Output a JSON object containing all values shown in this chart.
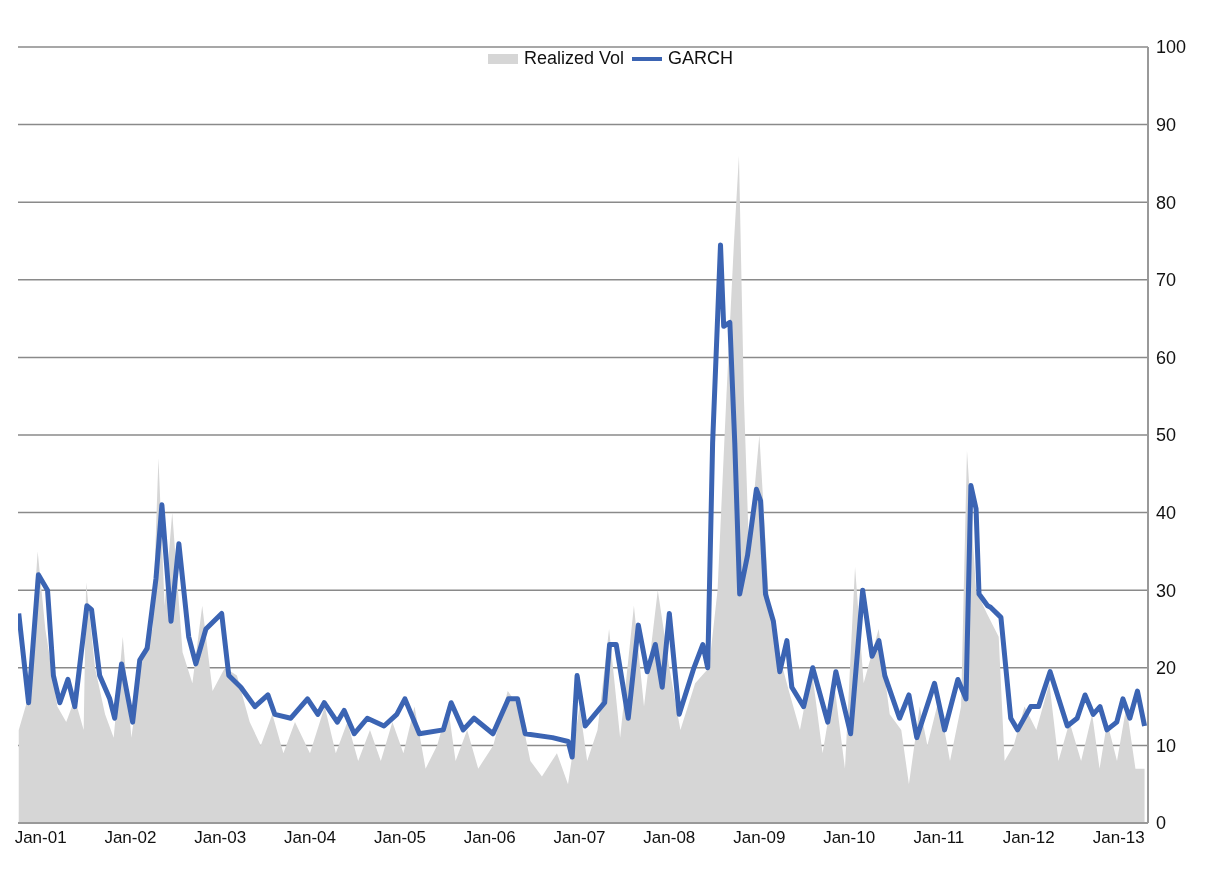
{
  "chart_data": {
    "type": "line",
    "legend": "top",
    "grid": "y",
    "marker": "none",
    "line_style": "solid",
    "xlim": [
      "2000-10-01",
      "2013-04-30"
    ],
    "xticks": [
      {
        "value": "2001-01-01",
        "label": "Jan-01"
      },
      {
        "value": "2002-01-01",
        "label": "Jan-02"
      },
      {
        "value": "2003-01-01",
        "label": "Jan-03"
      },
      {
        "value": "2004-01-01",
        "label": "Jan-04"
      },
      {
        "value": "2005-01-01",
        "label": "Jan-05"
      },
      {
        "value": "2006-01-01",
        "label": "Jan-06"
      },
      {
        "value": "2007-01-01",
        "label": "Jan-07"
      },
      {
        "value": "2008-01-01",
        "label": "Jan-08"
      },
      {
        "value": "2009-01-01",
        "label": "Jan-09"
      },
      {
        "value": "2010-01-01",
        "label": "Jan-10"
      },
      {
        "value": "2011-01-01",
        "label": "Jan-11"
      },
      {
        "value": "2012-01-01",
        "label": "Jan-12"
      },
      {
        "value": "2013-01-01",
        "label": "Jan-13"
      }
    ],
    "ylim": [
      0,
      100
    ],
    "yticks": [
      0,
      10,
      20,
      30,
      40,
      50,
      60,
      70,
      80,
      90,
      100
    ],
    "series": [
      {
        "name": "Realized Vol",
        "type": "area",
        "color": "#d6d6d6",
        "x": [
          "2000-10-04",
          "2000-11-10",
          "2000-12-20",
          "2001-01-20",
          "2001-03-10",
          "2001-04-15",
          "2001-05-20",
          "2001-06-25",
          "2001-07-05",
          "2001-08-10",
          "2001-09-20",
          "2001-10-25",
          "2001-12-01",
          "2002-01-05",
          "2002-02-20",
          "2002-04-01",
          "2002-04-25",
          "2002-05-20",
          "2002-06-20",
          "2002-08-01",
          "2002-09-10",
          "2002-10-20",
          "2002-12-01",
          "2003-01-20",
          "2003-03-10",
          "2003-05-01",
          "2003-06-15",
          "2003-08-01",
          "2003-09-15",
          "2003-11-01",
          "2004-01-01",
          "2004-03-01",
          "2004-04-15",
          "2004-06-01",
          "2004-07-15",
          "2004-09-01",
          "2004-10-15",
          "2004-12-01",
          "2005-01-15",
          "2005-03-01",
          "2005-04-15",
          "2005-06-01",
          "2005-07-15",
          "2005-08-15",
          "2005-10-01",
          "2005-11-15",
          "2006-01-15",
          "2006-03-15",
          "2006-05-01",
          "2006-06-15",
          "2006-08-01",
          "2006-10-01",
          "2006-11-15",
          "2007-01-01",
          "2007-02-01",
          "2007-03-15",
          "2007-05-01",
          "2007-06-15",
          "2007-08-10",
          "2007-09-20",
          "2007-11-15",
          "2008-01-01",
          "2008-02-15",
          "2008-04-15",
          "2008-06-10",
          "2008-07-15",
          "2008-08-20",
          "2008-09-20",
          "2008-10-10",
          "2008-10-30",
          "2008-11-20",
          "2009-01-01",
          "2009-02-10",
          "2009-03-20",
          "2009-05-01",
          "2009-06-15",
          "2009-08-01",
          "2009-09-15",
          "2009-11-01",
          "2009-12-15",
          "2010-01-25",
          "2010-03-01",
          "2010-05-01",
          "2010-06-15",
          "2010-08-01",
          "2010-09-01",
          "2010-10-15",
          "2010-11-15",
          "2011-01-01",
          "2011-02-15",
          "2011-04-01",
          "2011-04-25",
          "2011-06-01",
          "2011-07-15",
          "2011-09-01",
          "2011-09-25",
          "2011-11-01",
          "2011-12-15",
          "2012-02-01",
          "2012-03-25",
          "2012-05-01",
          "2012-06-15",
          "2012-08-01",
          "2012-09-15",
          "2012-10-15",
          "2012-11-15",
          "2012-12-25",
          "2013-02-01",
          "2013-03-10",
          "2013-04-16"
        ],
        "values": [
          12,
          16,
          35,
          25,
          15,
          13,
          16,
          12,
          31,
          20,
          14,
          11,
          24,
          11,
          22,
          25,
          47,
          28,
          40,
          22,
          18,
          28,
          17,
          20,
          19,
          13,
          10,
          14,
          9,
          13,
          9,
          15,
          9,
          13,
          8,
          12,
          8,
          13,
          9,
          15,
          7,
          10,
          15,
          8,
          12,
          7,
          10,
          17,
          15,
          8,
          6,
          9,
          5,
          15,
          8,
          12,
          25,
          11,
          28,
          15,
          30,
          20,
          12,
          18,
          20,
          30,
          55,
          75,
          86,
          55,
          35,
          50,
          28,
          22,
          17,
          12,
          20,
          9,
          18,
          7,
          33,
          18,
          25,
          14,
          12,
          5,
          15,
          10,
          16,
          8,
          15,
          48,
          30,
          27,
          24,
          8,
          10,
          15,
          12,
          18,
          8,
          13,
          8,
          14,
          7,
          13,
          8,
          15,
          7,
          7
        ]
      },
      {
        "name": "GARCH",
        "type": "line",
        "color": "#3b64b3",
        "x": [
          "2000-10-04",
          "2000-11-13",
          "2000-12-23",
          "2001-01-29",
          "2001-02-22",
          "2001-03-20",
          "2001-04-22",
          "2001-05-20",
          "2001-07-08",
          "2001-07-27",
          "2001-08-29",
          "2001-10-09",
          "2001-10-29",
          "2001-11-26",
          "2002-01-10",
          "2002-02-08",
          "2002-03-10",
          "2002-04-15",
          "2002-05-09",
          "2002-06-15",
          "2002-07-17",
          "2002-08-26",
          "2002-09-24",
          "2002-11-04",
          "2003-01-07",
          "2003-02-05",
          "2003-03-26",
          "2003-05-22",
          "2003-07-14",
          "2003-08-11",
          "2003-10-15",
          "2003-12-22",
          "2004-02-02",
          "2004-02-28",
          "2004-04-21",
          "2004-05-19",
          "2004-06-29",
          "2004-08-21",
          "2004-10-28",
          "2004-12-19",
          "2005-01-21",
          "2005-03-21",
          "2005-06-26",
          "2005-07-28",
          "2005-09-15",
          "2005-10-29",
          "2006-01-14",
          "2006-03-18",
          "2006-04-24",
          "2006-05-25",
          "2006-09-13",
          "2006-11-16",
          "2006-12-02",
          "2006-12-22",
          "2007-01-24",
          "2007-04-13",
          "2007-05-03",
          "2007-05-30",
          "2007-07-18",
          "2007-08-28",
          "2007-10-03",
          "2007-11-05",
          "2007-12-03",
          "2008-01-01",
          "2008-02-10",
          "2008-04-10",
          "2008-05-16",
          "2008-06-05",
          "2008-06-25",
          "2008-07-27",
          "2008-08-09",
          "2008-09-03",
          "2008-09-23",
          "2008-10-13",
          "2008-11-14",
          "2008-12-20",
          "2009-01-06",
          "2009-01-26",
          "2009-02-27",
          "2009-03-25",
          "2009-04-23",
          "2009-05-13",
          "2009-06-30",
          "2009-08-06",
          "2009-10-06",
          "2009-11-08",
          "2010-01-07",
          "2010-02-25",
          "2010-04-04",
          "2010-05-02",
          "2010-05-26",
          "2010-07-25",
          "2010-09-01",
          "2010-10-03",
          "2010-12-14",
          "2011-01-24",
          "2011-03-19",
          "2011-04-21",
          "2011-05-11",
          "2011-06-01",
          "2011-06-13",
          "2011-07-18",
          "2011-07-30",
          "2011-09-10",
          "2011-10-20",
          "2011-11-17",
          "2012-01-09",
          "2012-02-10",
          "2012-03-28",
          "2012-06-06",
          "2012-07-16",
          "2012-08-17",
          "2012-09-19",
          "2012-10-17",
          "2012-11-14",
          "2012-12-24",
          "2013-01-18",
          "2013-02-15",
          "2013-03-18",
          "2013-04-16"
        ],
        "values": [
          27,
          15.5,
          32,
          30,
          19,
          15.5,
          18.5,
          15,
          28,
          27.5,
          19,
          16,
          13.5,
          20.5,
          13,
          21,
          22.5,
          31.5,
          41,
          26,
          36,
          24,
          20.5,
          25,
          27,
          19,
          17.5,
          15,
          16.5,
          14,
          13.5,
          16,
          14,
          15.5,
          13,
          14.5,
          11.5,
          13.5,
          12.5,
          14,
          16,
          11.5,
          12,
          15.5,
          12,
          13.5,
          11.5,
          16,
          16,
          11.5,
          11,
          10.5,
          8.5,
          19,
          12.5,
          15.5,
          23,
          23,
          13.5,
          25.5,
          19.5,
          23,
          17.5,
          27,
          14,
          20,
          23,
          20,
          49,
          74.5,
          64,
          64.5,
          49,
          29.5,
          34.5,
          43,
          41.5,
          29.5,
          26,
          19.5,
          23.5,
          17.5,
          15,
          20,
          13,
          19.5,
          11.5,
          30,
          21.5,
          23.5,
          19,
          13.5,
          16.5,
          11,
          18,
          12,
          18.5,
          16,
          43.5,
          40.5,
          29.5,
          28,
          27.8,
          26.5,
          13.5,
          12,
          15,
          15,
          19.5,
          12.5,
          13.5,
          16.5,
          14,
          15,
          12,
          13,
          16,
          13.5,
          17,
          12.5
        ]
      }
    ]
  }
}
